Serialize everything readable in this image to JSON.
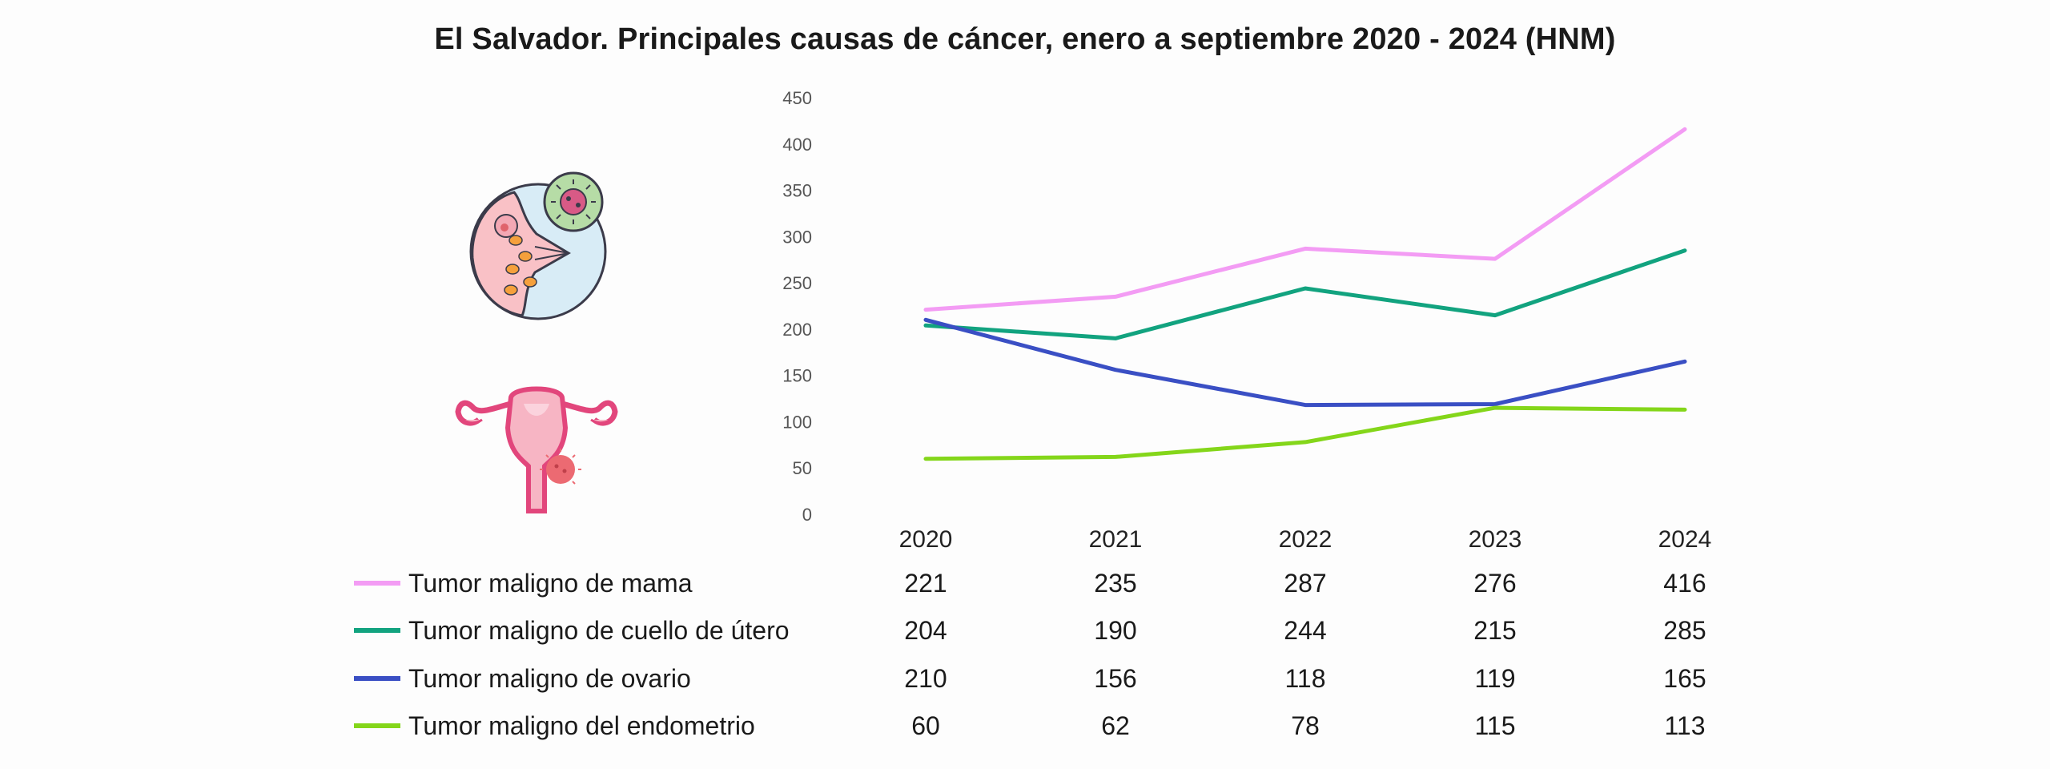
{
  "chart_data": {
    "type": "line",
    "title": "El Salvador. Principales causas de cáncer, enero a septiembre 2020 - 2024  (HNM)",
    "x": [
      "2020",
      "2021",
      "2022",
      "2023",
      "2024"
    ],
    "ylim": [
      0,
      450
    ],
    "yticks": [
      0,
      50,
      100,
      150,
      200,
      250,
      300,
      350,
      400,
      450
    ],
    "grid": false,
    "legend": "bottom-table",
    "series": [
      {
        "name": "Tumor maligno de mama",
        "color": "#f39cf4",
        "values": [
          221,
          235,
          287,
          276,
          416
        ]
      },
      {
        "name": "Tumor maligno de cuello de útero",
        "color": "#12a37f",
        "values": [
          204,
          190,
          244,
          215,
          285
        ]
      },
      {
        "name": "Tumor maligno de ovario",
        "color": "#3a4fc4",
        "values": [
          210,
          156,
          118,
          119,
          165
        ]
      },
      {
        "name": "Tumor maligno del endometrio",
        "color": "#84d61a",
        "values": [
          60,
          62,
          78,
          115,
          113
        ]
      }
    ]
  },
  "icons": [
    "breast-cancer-icon",
    "uterus-tumor-icon"
  ]
}
